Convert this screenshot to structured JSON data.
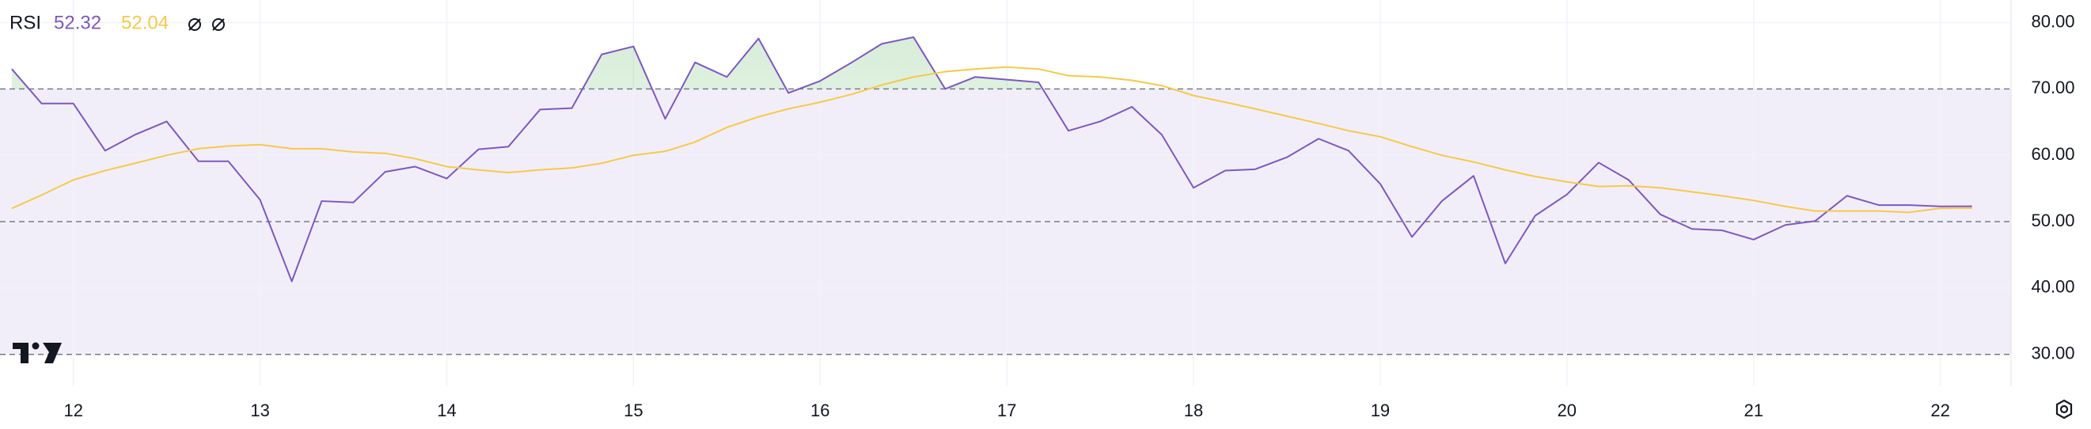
{
  "chart_data": {
    "type": "line",
    "title": "RSI",
    "x": [
      11.67,
      11.83,
      12,
      12.17,
      12.33,
      12.5,
      12.67,
      12.83,
      13,
      13.17,
      13.33,
      13.5,
      13.67,
      13.83,
      14,
      14.17,
      14.33,
      14.5,
      14.67,
      14.83,
      15,
      15.17,
      15.33,
      15.5,
      15.67,
      15.83,
      16,
      16.17,
      16.33,
      16.5,
      16.67,
      16.83,
      17,
      17.17,
      17.33,
      17.5,
      17.67,
      17.83,
      18,
      18.17,
      18.33,
      18.5,
      18.67,
      18.83,
      19,
      19.17,
      19.33,
      19.5,
      19.67,
      19.83,
      20,
      20.17,
      20.33,
      20.5,
      20.67,
      20.83,
      21,
      21.17,
      21.33,
      21.5,
      21.67,
      21.83,
      22,
      22.17
    ],
    "series": [
      {
        "name": "RSI",
        "color": "#7e57c2",
        "values": [
          73.0,
          67.8,
          67.8,
          60.7,
          63.1,
          65.1,
          59.1,
          59.1,
          53.3,
          41.0,
          53.1,
          52.9,
          57.5,
          58.3,
          56.5,
          60.9,
          61.3,
          66.9,
          67.1,
          75.2,
          76.4,
          65.5,
          74.0,
          71.8,
          77.6,
          69.4,
          71.2,
          74.0,
          76.8,
          77.8,
          70.0,
          71.8,
          71.4,
          71.0,
          63.7,
          65.1,
          67.3,
          63.1,
          55.1,
          57.7,
          57.9,
          59.7,
          62.5,
          60.7,
          55.7,
          47.7,
          53.1,
          56.9,
          43.7,
          50.9,
          54.1,
          58.9,
          56.3,
          51.1,
          48.9,
          48.7,
          47.3,
          49.5,
          50.1,
          53.9,
          52.5,
          52.5,
          52.3,
          52.32
        ]
      },
      {
        "color": "#f7c948",
        "values": [
          52.0,
          54.0,
          56.3,
          57.7,
          58.8,
          60.0,
          61.0,
          61.4,
          61.6,
          61.0,
          61.0,
          60.5,
          60.3,
          59.5,
          58.3,
          57.8,
          57.4,
          57.8,
          58.1,
          58.8,
          60.0,
          60.6,
          62.0,
          64.2,
          65.8,
          67.0,
          68.0,
          69.2,
          70.6,
          71.8,
          72.6,
          73.0,
          73.3,
          73.0,
          72.0,
          71.8,
          71.3,
          70.5,
          69.0,
          68.0,
          67.0,
          65.9,
          64.8,
          63.7,
          62.8,
          61.3,
          60.0,
          59.0,
          57.8,
          56.8,
          56.0,
          55.3,
          55.4,
          55.1,
          54.5,
          53.9,
          53.2,
          52.3,
          51.6,
          51.6,
          51.6,
          51.4,
          52.0,
          52.04
        ]
      }
    ],
    "xlim": [
      11.607,
      22.379
    ],
    "xticks": [
      12,
      13,
      14,
      15,
      16,
      17,
      18,
      19,
      20,
      21,
      22
    ],
    "ylim": [
      25.2,
      83.4
    ],
    "yticks": [
      {
        "value": 30,
        "label": "30.00"
      },
      {
        "value": 40,
        "label": "40.00"
      },
      {
        "value": 50,
        "label": "50.00"
      },
      {
        "value": 60,
        "label": "60.00"
      },
      {
        "value": 70,
        "label": "70.00"
      },
      {
        "value": 80,
        "label": "80.00"
      }
    ],
    "levels": [
      30,
      50,
      70
    ],
    "grid": true
  }
}
